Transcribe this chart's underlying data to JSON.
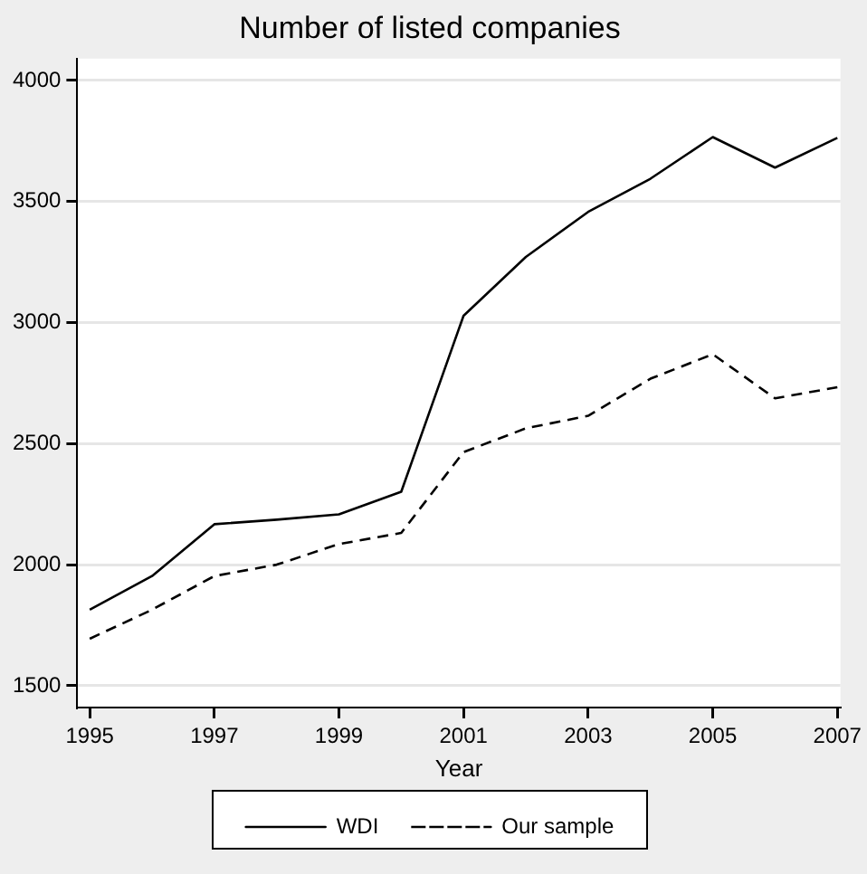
{
  "chart_data": {
    "type": "line",
    "title": "Number of listed companies",
    "xlabel": "Year",
    "x": [
      1995,
      1996,
      1997,
      1998,
      1999,
      2000,
      2001,
      2002,
      2003,
      2004,
      2005,
      2006,
      2007
    ],
    "series": [
      {
        "name": "WDI",
        "color": "#000000",
        "line_style": "solid",
        "values": [
          1814,
          1953,
          2167,
          2186,
          2208,
          2301,
          3028,
          3271,
          3457,
          3594,
          3766,
          3640,
          3763
        ]
      },
      {
        "name": "Our sample",
        "color": "#000000",
        "line_style": "dashed",
        "values": [
          1694,
          1814,
          1953,
          2000,
          2085,
          2131,
          2465,
          2563,
          2615,
          2768,
          2869,
          2687,
          2733
        ]
      }
    ],
    "xlim": [
      1994.8,
      2007.05
    ],
    "xticks": [
      1995,
      1997,
      1999,
      2001,
      2003,
      2005,
      2007
    ],
    "ylim": [
      1410,
      4090
    ],
    "yticks": [
      1500,
      2000,
      2500,
      3000,
      3500,
      4000
    ],
    "grid": "y",
    "legend": "bottom",
    "marker": "none"
  }
}
